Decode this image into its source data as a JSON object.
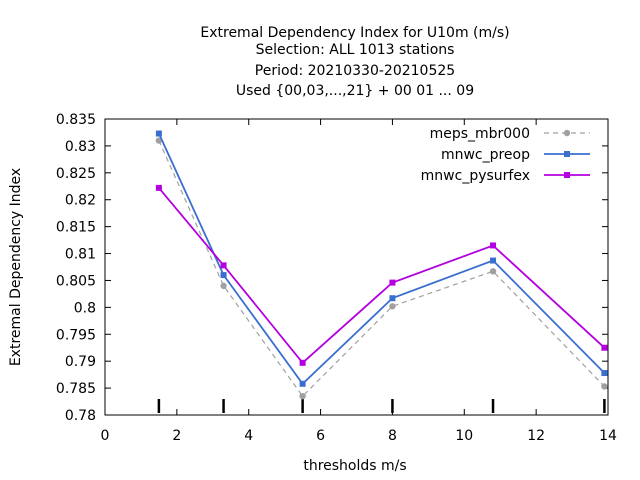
{
  "chart_data": {
    "type": "line",
    "title_lines": [
      "Extremal Dependency Index  for U10m (m/s)",
      "Selection: ALL    1013 stations",
      "Period: 20210330-20210525",
      "Used {00,03,...,21} + 00 01 ... 09"
    ],
    "xlabel": "thresholds m/s",
    "ylabel": "Extremal Dependency Index",
    "xlim": [
      0,
      14
    ],
    "ylim": [
      0.78,
      0.835
    ],
    "xticks": [
      0,
      2,
      4,
      6,
      8,
      10,
      12,
      14
    ],
    "xtick_labels": [
      "0",
      "2",
      "4",
      "6",
      "8",
      "10",
      "12",
      "14"
    ],
    "yticks": [
      0.78,
      0.785,
      0.79,
      0.795,
      0.8,
      0.805,
      0.81,
      0.815,
      0.82,
      0.825,
      0.83,
      0.835
    ],
    "ytick_labels": [
      "0.78",
      "0.785",
      "0.79",
      "0.795",
      "0.8",
      "0.805",
      "0.81",
      "0.815",
      "0.82",
      "0.825",
      "0.83",
      "0.835"
    ],
    "threshold_marks": [
      1.5,
      3.3,
      5.5,
      8.0,
      10.8,
      13.9
    ],
    "grid": false,
    "legend_position": "top-right",
    "series": [
      {
        "name": "meps_mbr000",
        "color": "#a0a0a0",
        "dashed": true,
        "x": [
          1.5,
          3.3,
          5.5,
          8.0,
          10.8,
          13.9
        ],
        "y": [
          0.831,
          0.804,
          0.7835,
          0.8002,
          0.8067,
          0.7853
        ]
      },
      {
        "name": "mnwc_preop",
        "color": "#3a6fd0",
        "dashed": false,
        "x": [
          1.5,
          3.3,
          5.5,
          8.0,
          10.8,
          13.9
        ],
        "y": [
          0.8323,
          0.806,
          0.7858,
          0.8017,
          0.8087,
          0.7878
        ]
      },
      {
        "name": "mnwc_pysurfex",
        "color": "#b400e0",
        "dashed": false,
        "x": [
          1.5,
          3.3,
          5.5,
          8.0,
          10.8,
          13.9
        ],
        "y": [
          0.8222,
          0.8078,
          0.7897,
          0.8046,
          0.8115,
          0.7925
        ]
      }
    ]
  }
}
